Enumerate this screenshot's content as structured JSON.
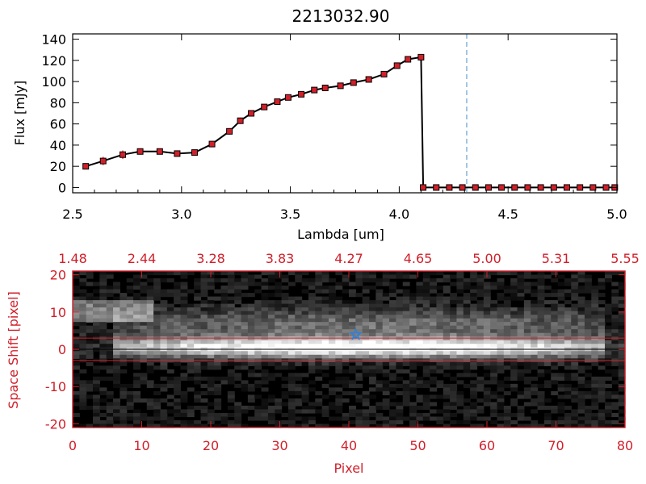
{
  "chart_data": [
    {
      "type": "line",
      "title": "2213032.90",
      "xlabel": "Lambda [um]",
      "ylabel": "Flux [mJy]",
      "xlim": [
        2.5,
        5.0
      ],
      "ylim": [
        -5,
        145
      ],
      "xticks": [
        "2.5",
        "3.0",
        "3.5",
        "4.0",
        "4.5",
        "5.0"
      ],
      "yticks": [
        "0",
        "20",
        "40",
        "60",
        "80",
        "100",
        "120",
        "140"
      ],
      "cutoff_line": 4.31,
      "series": [
        {
          "x": [
            2.56,
            2.64,
            2.73,
            2.81,
            2.9,
            2.98,
            3.06,
            3.14,
            3.22,
            3.27,
            3.32,
            3.38,
            3.44,
            3.49,
            3.55,
            3.61,
            3.66,
            3.73,
            3.79,
            3.86,
            3.93,
            3.99,
            4.04,
            4.1,
            4.11
          ],
          "y": [
            20,
            25,
            31,
            34,
            34,
            32,
            33,
            41,
            53,
            63,
            70,
            76,
            81,
            85,
            88,
            92,
            94,
            96,
            99,
            102,
            107,
            115,
            121,
            123,
            0
          ],
          "err": [
            2,
            4,
            4,
            2,
            2,
            2,
            2,
            3,
            3,
            3,
            3,
            2,
            2,
            2,
            2,
            2,
            2,
            2,
            2,
            2,
            2,
            2,
            2,
            2,
            0
          ]
        }
      ],
      "zero_points_x": [
        4.11,
        4.17,
        4.23,
        4.29,
        4.35,
        4.41,
        4.47,
        4.53,
        4.59,
        4.65,
        4.71,
        4.77,
        4.83,
        4.89,
        4.95,
        4.99
      ]
    },
    {
      "type": "heatmap",
      "xlabel": "Pixel",
      "ylabel": "Space Shift [pixel]",
      "xlim": [
        0,
        80
      ],
      "ylim": [
        -21,
        21
      ],
      "xticks": [
        "0",
        "10",
        "20",
        "30",
        "40",
        "50",
        "60",
        "70",
        "80"
      ],
      "yticks": [
        "-20",
        "-10",
        "0",
        "10",
        "20"
      ],
      "top_axis_ticks": [
        "1.48",
        "2.44",
        "3.28",
        "3.83",
        "4.27",
        "4.65",
        "5.00",
        "5.31",
        "5.55"
      ],
      "aperture": [
        -3,
        3
      ],
      "star_marker": [
        41,
        4
      ]
    }
  ],
  "colors": {
    "axis_red": "#d0202a",
    "marker_red": "#d0202a",
    "cutoff_blue": "#4a90c8",
    "star_blue": "#2f7fd8"
  }
}
